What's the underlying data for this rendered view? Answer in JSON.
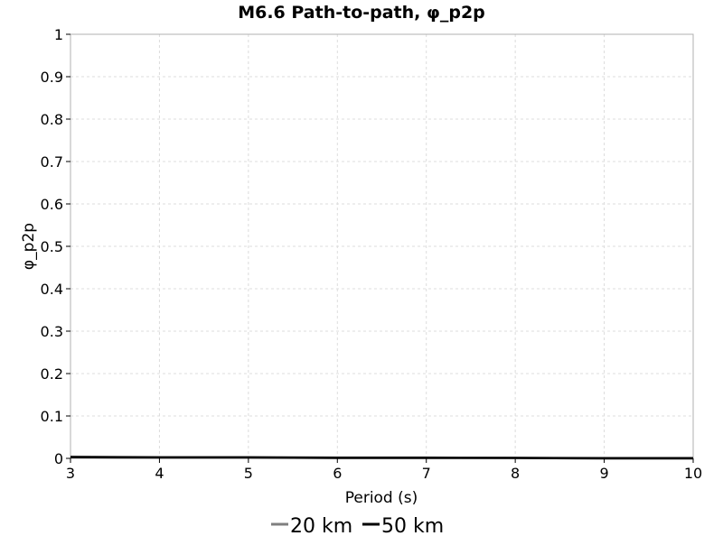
{
  "chart_data": {
    "type": "line",
    "title": "M6.6 Path-to-path, φ_p2p",
    "xlabel": "Period (s)",
    "ylabel": "φ_p2p",
    "xlim": [
      3,
      10
    ],
    "ylim": [
      0,
      1
    ],
    "xticks": [
      "3",
      "4",
      "5",
      "6",
      "7",
      "8",
      "9",
      "10"
    ],
    "yticks": [
      "0",
      "0.1",
      "0.2",
      "0.3",
      "0.4",
      "0.5",
      "0.6",
      "0.7",
      "0.8",
      "0.9",
      "1"
    ],
    "grid": true,
    "legend_position": "bottom",
    "series": [
      {
        "name": "20 km",
        "color": "#7f7f7f",
        "x": [
          3,
          4,
          5,
          6,
          7,
          8,
          9,
          10
        ],
        "y": [
          0.004,
          0.003,
          0.003,
          0.002,
          0.002,
          0.001,
          0.001,
          0.001
        ]
      },
      {
        "name": "50 km",
        "color": "#000000",
        "x": [
          3,
          4,
          5,
          6,
          7,
          8,
          9,
          10
        ],
        "y": [
          0.003,
          0.002,
          0.002,
          0.001,
          0.001,
          0.001,
          0.0,
          0.0
        ]
      }
    ]
  }
}
